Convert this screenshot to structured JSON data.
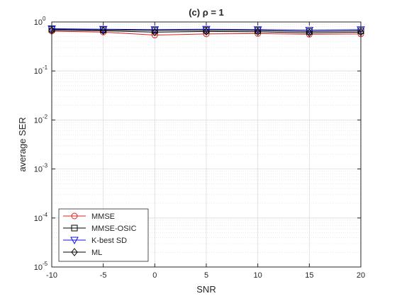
{
  "chart_data": {
    "type": "line",
    "title": "(c) ρ = 1",
    "xlabel": "SNR",
    "ylabel": "average SER",
    "x": [
      -10,
      -5,
      0,
      5,
      10,
      15,
      20
    ],
    "xlim": [
      -10,
      20
    ],
    "ylim": [
      1e-05,
      1
    ],
    "yscale": "log",
    "grid": true,
    "minor_grid": true,
    "legend_position": "bottom-left",
    "xticks": [
      "-10",
      "-5",
      "0",
      "5",
      "10",
      "15",
      "20"
    ],
    "yticks": [
      {
        "value": 1,
        "label": "10",
        "exp": "0"
      },
      {
        "value": 0.1,
        "label": "10",
        "exp": "-1"
      },
      {
        "value": 0.01,
        "label": "10",
        "exp": "-2"
      },
      {
        "value": 0.001,
        "label": "10",
        "exp": "-3"
      },
      {
        "value": 0.0001,
        "label": "10",
        "exp": "-4"
      },
      {
        "value": 1e-05,
        "label": "10",
        "exp": "-5"
      }
    ],
    "series": [
      {
        "name": "MMSE",
        "color": "#e02020",
        "marker": "circle",
        "values": [
          0.65,
          0.62,
          0.54,
          0.57,
          0.58,
          0.56,
          0.57
        ]
      },
      {
        "name": "MMSE-OSIC",
        "color": "#000000",
        "marker": "square",
        "values": [
          0.71,
          0.69,
          0.67,
          0.68,
          0.67,
          0.64,
          0.66
        ]
      },
      {
        "name": "K-best SD",
        "color": "#1010e0",
        "marker": "triangle-down",
        "values": [
          0.73,
          0.71,
          0.7,
          0.71,
          0.7,
          0.68,
          0.7
        ]
      },
      {
        "name": "ML",
        "color": "#000000",
        "marker": "diamond",
        "values": [
          0.68,
          0.66,
          0.62,
          0.64,
          0.63,
          0.6,
          0.62
        ]
      }
    ]
  }
}
